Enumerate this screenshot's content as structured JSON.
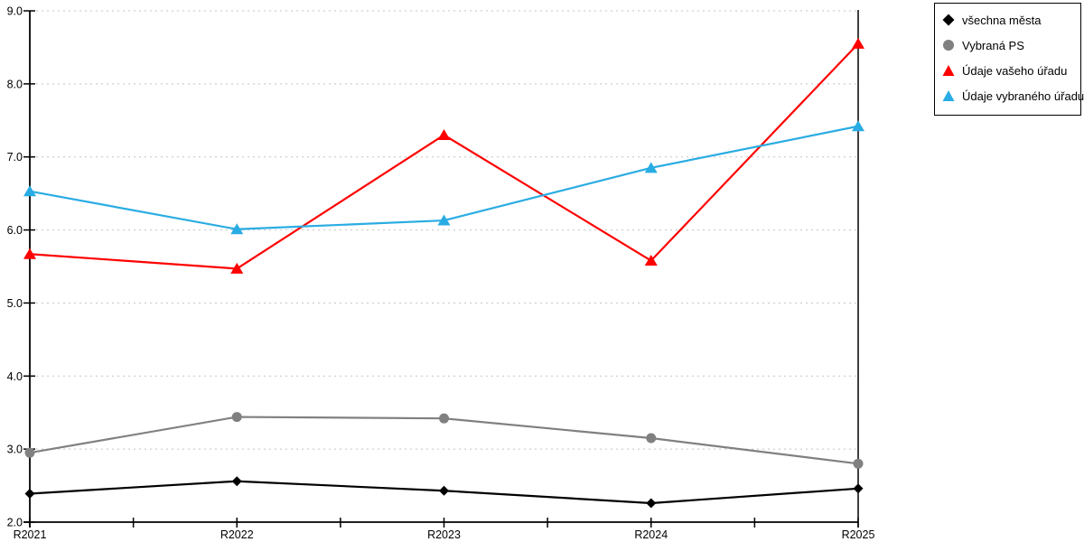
{
  "chart_data": {
    "type": "line",
    "title": "",
    "xlabel": "",
    "ylabel": "",
    "categories": [
      "R2021",
      "R2022",
      "R2023",
      "R2024",
      "R2025"
    ],
    "series": [
      {
        "name": "všechna města",
        "marker": "diamond",
        "color": "#000000",
        "values": [
          2.39,
          2.56,
          2.43,
          2.26,
          2.46
        ]
      },
      {
        "name": "Vybraná PS",
        "marker": "circle",
        "color": "#808080",
        "values": [
          2.95,
          3.44,
          3.42,
          3.15,
          2.8
        ]
      },
      {
        "name": "Údaje vašeho úřadu",
        "marker": "triangle",
        "color": "#ff0000",
        "values": [
          5.67,
          5.47,
          7.3,
          5.58,
          8.55
        ]
      },
      {
        "name": "Údaje vybraného úřadu",
        "marker": "triangle",
        "color": "#29ace3",
        "values": [
          6.53,
          6.01,
          6.13,
          6.85,
          7.42
        ]
      }
    ],
    "ylim": [
      2.0,
      9.0
    ],
    "y_tick_step": 1.0,
    "y_tick_labels": [
      "2.0",
      "3.0",
      "4.0",
      "5.0",
      "6.0",
      "7.0",
      "8.0",
      "9.0"
    ],
    "grid": "horizontal-dotted",
    "legend_position": "top-right"
  },
  "styles": {
    "background_color": "#ffffff",
    "axis_color": "#000000",
    "grid_color": "#c3c3c3",
    "legend_border_color": "#000000",
    "text_color": "#000000"
  }
}
